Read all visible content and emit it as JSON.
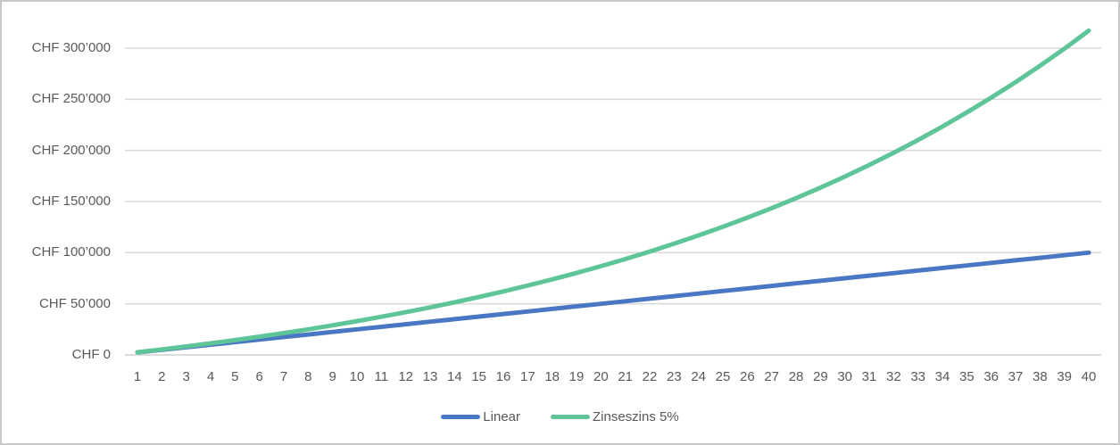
{
  "frame": {
    "background": "#ffffff",
    "border_color": "#c8c8c8"
  },
  "colors": {
    "gridline": "#d9d9d9",
    "axis_baseline": "#d2d2d2",
    "label_text": "#595959"
  },
  "legend": {
    "position": "bottom-center",
    "items": [
      {
        "label": "Linear",
        "color": "#4a77c4"
      },
      {
        "label": "Zinseszins 5%",
        "color": "#5ec598"
      }
    ]
  },
  "chart_data": {
    "type": "line",
    "title": "",
    "xlabel": "",
    "ylabel": "",
    "grid": true,
    "legend_position": "bottom-center",
    "x": [
      1,
      2,
      3,
      4,
      5,
      6,
      7,
      8,
      9,
      10,
      11,
      12,
      13,
      14,
      15,
      16,
      17,
      18,
      19,
      20,
      21,
      22,
      23,
      24,
      25,
      26,
      27,
      28,
      29,
      30,
      31,
      32,
      33,
      34,
      35,
      36,
      37,
      38,
      39,
      40
    ],
    "ylim": [
      0,
      320000
    ],
    "yticks": {
      "values": [
        0,
        50000,
        100000,
        150000,
        200000,
        250000,
        300000
      ],
      "labels": [
        "CHF 0",
        "CHF 50’000",
        "CHF 100’000",
        "CHF 150’000",
        "CHF 200’000",
        "CHF 250’000",
        "CHF 300’000"
      ]
    },
    "series": [
      {
        "name": "Linear",
        "color": "#4a77c4",
        "values": [
          2500,
          5000,
          7500,
          10000,
          12500,
          15000,
          17500,
          20000,
          22500,
          25000,
          27500,
          30000,
          32500,
          35000,
          37500,
          40000,
          42500,
          45000,
          47500,
          50000,
          52500,
          55000,
          57500,
          60000,
          62500,
          65000,
          67500,
          70000,
          72500,
          75000,
          77500,
          80000,
          82500,
          85000,
          87500,
          90000,
          92500,
          95000,
          97500,
          100000
        ]
      },
      {
        "name": "Zinseszins 5%",
        "color": "#5ec598",
        "values": [
          2625,
          5381,
          8275,
          11314,
          14505,
          17855,
          21373,
          25066,
          28945,
          33017,
          37293,
          41782,
          46497,
          51446,
          56644,
          62101,
          67831,
          73848,
          80165,
          86798,
          93763,
          101076,
          108755,
          116818,
          125284,
          134173,
          143506,
          153307,
          163597,
          174402,
          185747,
          197659,
          210167,
          223301,
          237091,
          251570,
          266774,
          282738,
          299499,
          317099
        ]
      }
    ]
  }
}
